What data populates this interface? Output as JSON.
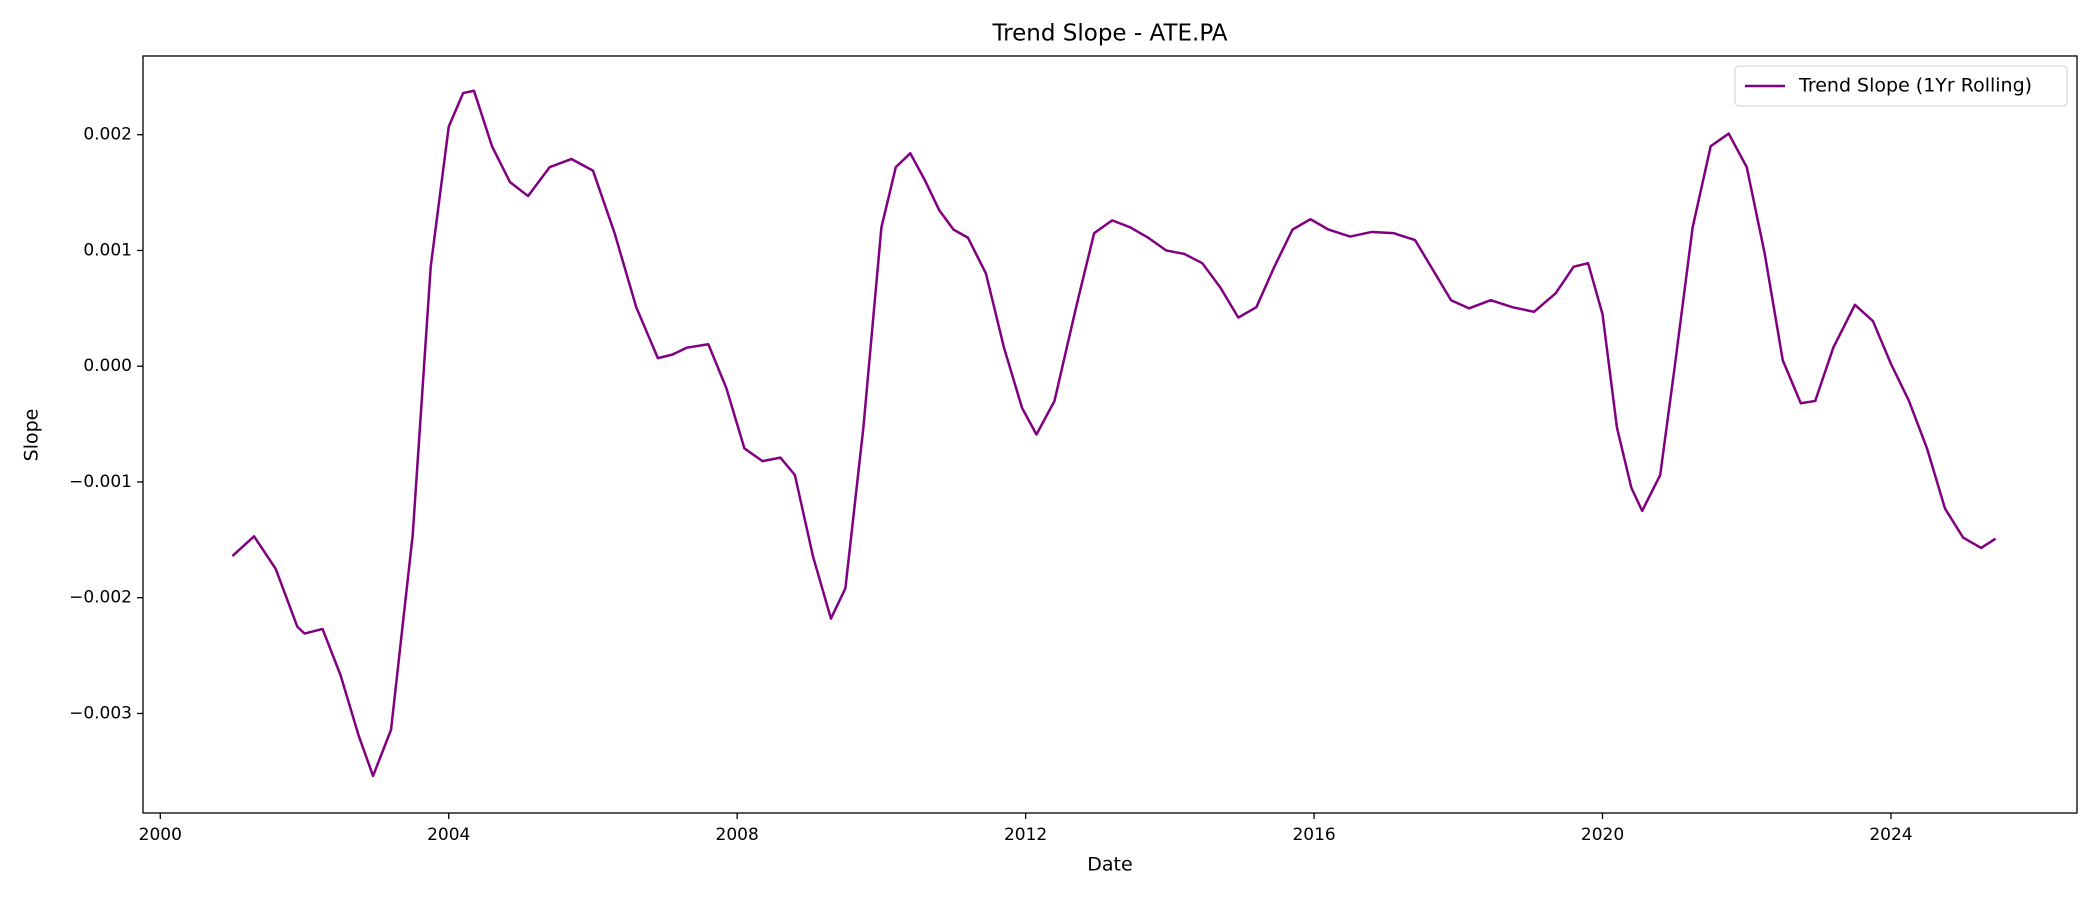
{
  "chart_data": {
    "type": "line",
    "title": "Trend Slope - ATE.PA",
    "xlabel": "Date",
    "ylabel": "Slope",
    "legend": "upper right",
    "x": [
      2001.0,
      2001.3,
      2001.6,
      2001.9,
      2002.0,
      2002.25,
      2002.5,
      2002.75,
      2002.95,
      2003.2,
      2003.5,
      2003.75,
      2004.0,
      2004.2,
      2004.35,
      2004.6,
      2004.85,
      2005.1,
      2005.4,
      2005.7,
      2006.0,
      2006.3,
      2006.6,
      2006.9,
      2007.1,
      2007.3,
      2007.6,
      2007.85,
      2008.1,
      2008.35,
      2008.6,
      2008.8,
      2009.05,
      2009.3,
      2009.5,
      2009.75,
      2010.0,
      2010.2,
      2010.4,
      2010.6,
      2010.8,
      2011.0,
      2011.2,
      2011.45,
      2011.7,
      2011.95,
      2012.15,
      2012.4,
      2012.7,
      2012.95,
      2013.2,
      2013.45,
      2013.7,
      2013.95,
      2014.2,
      2014.45,
      2014.7,
      2014.95,
      2015.2,
      2015.45,
      2015.7,
      2015.95,
      2016.2,
      2016.5,
      2016.8,
      2017.1,
      2017.4,
      2017.65,
      2017.9,
      2018.15,
      2018.45,
      2018.75,
      2019.05,
      2019.35,
      2019.6,
      2019.8,
      2020.0,
      2020.2,
      2020.4,
      2020.55,
      2020.8,
      2021.0,
      2021.25,
      2021.5,
      2021.75,
      2022.0,
      2022.25,
      2022.5,
      2022.75,
      2022.95,
      2023.2,
      2023.5,
      2023.75,
      2024.0,
      2024.25,
      2024.5,
      2024.75,
      2025.0,
      2025.25,
      2025.45
    ],
    "series": [
      {
        "name": "Trend Slope (1Yr Rolling)",
        "color": "#800080",
        "values": [
          -0.00164,
          -0.00147,
          -0.00175,
          -0.00225,
          -0.00231,
          -0.00227,
          -0.00267,
          -0.00319,
          -0.00354,
          -0.00314,
          -0.00146,
          0.00086,
          0.00207,
          0.00236,
          0.00238,
          0.0019,
          0.00159,
          0.00147,
          0.00172,
          0.00179,
          0.00169,
          0.00115,
          0.00051,
          7e-05,
          0.0001,
          0.00016,
          0.00019,
          -0.00019,
          -0.00071,
          -0.00082,
          -0.00079,
          -0.00094,
          -0.00164,
          -0.00218,
          -0.00192,
          -0.00053,
          0.0012,
          0.00172,
          0.00184,
          0.00161,
          0.00135,
          0.00118,
          0.00111,
          0.0008,
          0.00016,
          -0.00036,
          -0.00059,
          -0.0003,
          0.00051,
          0.00115,
          0.00126,
          0.0012,
          0.00111,
          0.001,
          0.00097,
          0.00089,
          0.00068,
          0.00042,
          0.00051,
          0.00086,
          0.00118,
          0.00127,
          0.00118,
          0.00112,
          0.00116,
          0.00115,
          0.00109,
          0.00083,
          0.00057,
          0.0005,
          0.00057,
          0.00051,
          0.00047,
          0.00063,
          0.00086,
          0.00089,
          0.00045,
          -0.00053,
          -0.00105,
          -0.00125,
          -0.00094,
          -1e-05,
          0.0012,
          0.0019,
          0.00201,
          0.00172,
          0.00097,
          5e-05,
          -0.00032,
          -0.0003,
          0.00016,
          0.00053,
          0.00039,
          2e-05,
          -0.0003,
          -0.00071,
          -0.00123,
          -0.00148,
          -0.00157,
          -0.00149
        ]
      }
    ],
    "xlim": [
      1999.76,
      2026.58
    ],
    "xticks": [
      2000,
      2004,
      2008,
      2012,
      2016,
      2020,
      2024
    ],
    "ylim": [
      -0.00386,
      0.00268
    ],
    "yticks": [
      {
        "value": -0.003,
        "label": "−0.003"
      },
      {
        "value": -0.002,
        "label": "−0.002"
      },
      {
        "value": -0.001,
        "label": "−0.001"
      },
      {
        "value": 0,
        "label": "0.000"
      },
      0.001,
      0.002
    ]
  }
}
